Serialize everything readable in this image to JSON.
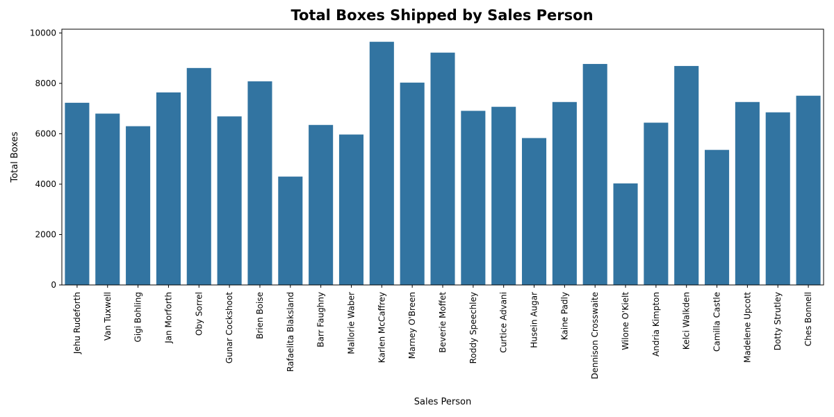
{
  "chart_data": {
    "type": "bar",
    "title": "Total Boxes Shipped by Sales Person",
    "xlabel": "Sales Person",
    "ylabel": "Total Boxes",
    "ylim": [
      0,
      10150
    ],
    "yticks": [
      0,
      2000,
      4000,
      6000,
      8000,
      10000
    ],
    "ytick_labels": [
      "0",
      "2000",
      "4000",
      "6000",
      "8000",
      "10000"
    ],
    "grid": false,
    "bar_color": "#3274a1",
    "categories": [
      "Jehu Rudeforth",
      "Van Tuxwell",
      "Gigi Bohling",
      "Jan Morforth",
      "Oby Sorrel",
      "Gunar Cockshoot",
      "Brien Boise",
      "Rafaelita Blaksland",
      "Barr Faughny",
      "Mallorie Waber",
      "Karlen McCaffrey",
      "Marney O'Breen",
      "Beverie Moffet",
      "Roddy Speechley",
      "Curtice Advani",
      "Husein Augar",
      "Kaine Padly",
      "Dennison Crosswaite",
      "Wilone O'Kielt",
      "Andria Kimpton",
      "Kelci Walkden",
      "Camilla Castle",
      "Madelene Upcott",
      "Dotty Strutley",
      "Ches Bonnell"
    ],
    "values": [
      7230,
      6800,
      6300,
      7640,
      8610,
      6690,
      8080,
      4300,
      6350,
      5970,
      9650,
      8030,
      9220,
      6910,
      7070,
      5830,
      7260,
      8770,
      4030,
      6440,
      8690,
      5360,
      7260,
      6850,
      7510
    ]
  }
}
